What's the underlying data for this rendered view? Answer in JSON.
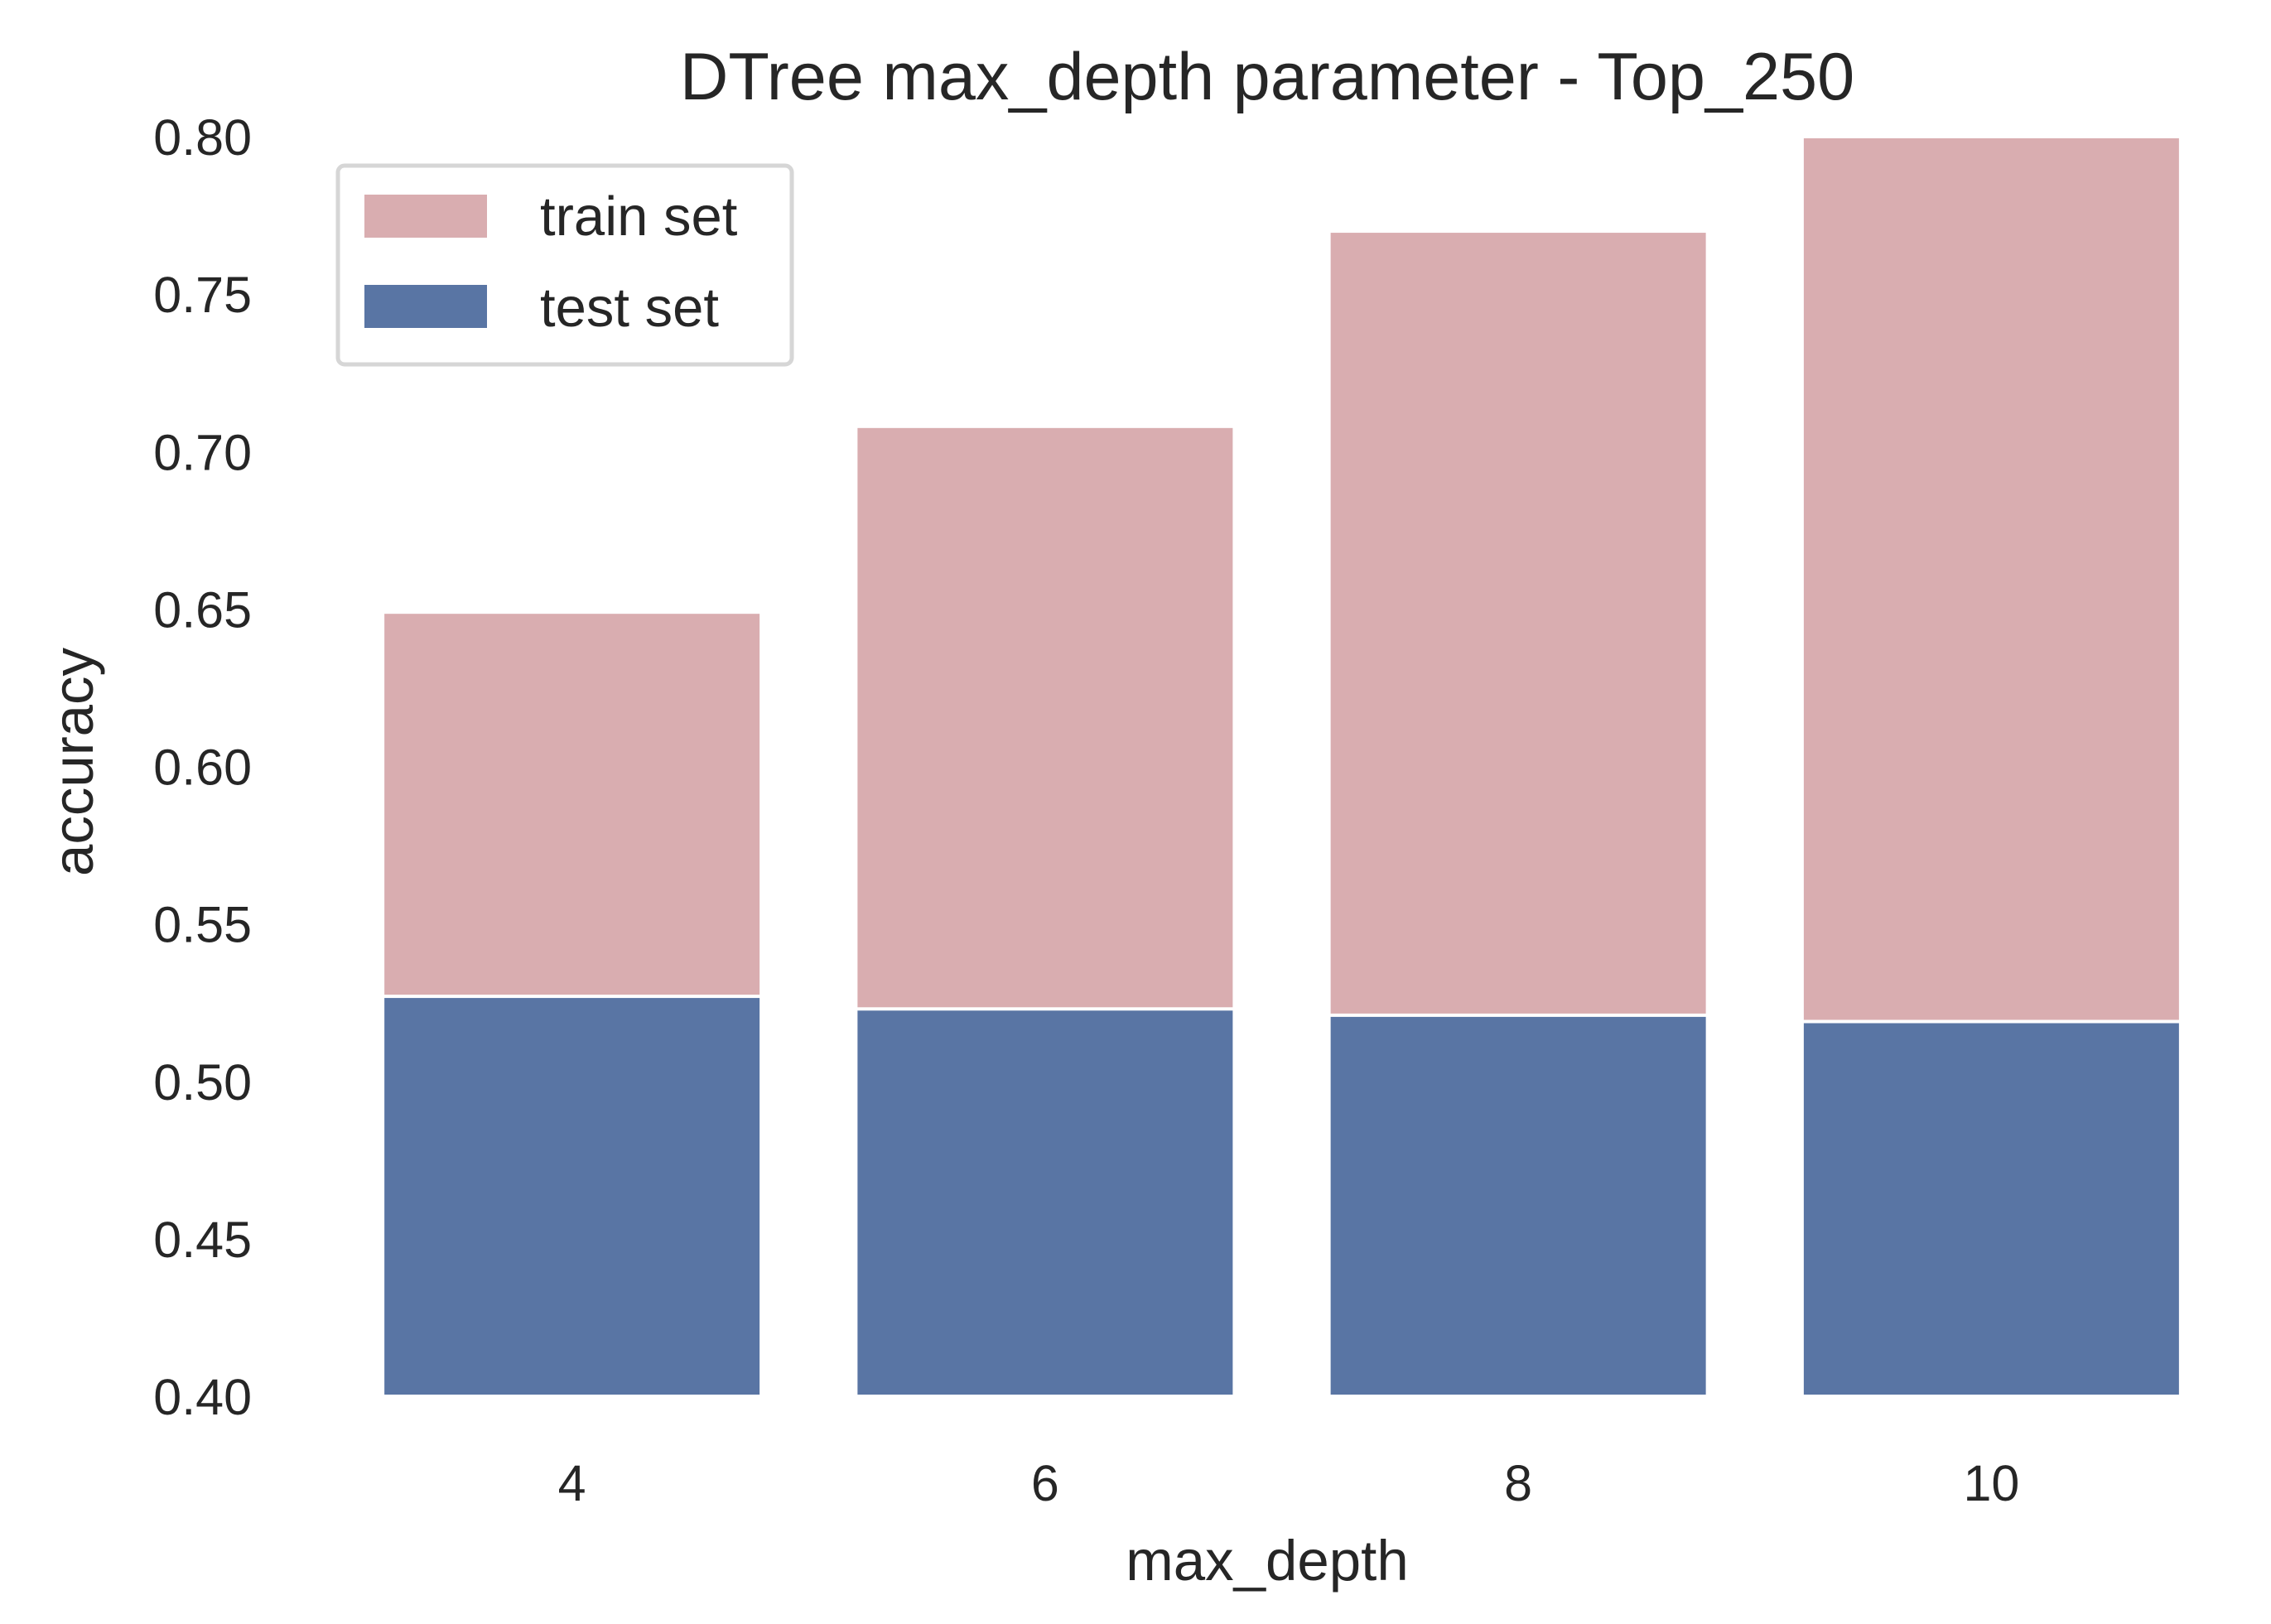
{
  "chart_data": {
    "type": "bar",
    "title": "DTree max_depth parameter - Top_250",
    "xlabel": "max_depth",
    "ylabel": "accuracy",
    "categories": [
      "4",
      "6",
      "8",
      "10"
    ],
    "ylim": [
      0.4,
      0.8
    ],
    "yticks": [
      "0.40",
      "0.45",
      "0.50",
      "0.55",
      "0.60",
      "0.65",
      "0.70",
      "0.75",
      "0.80"
    ],
    "grid": false,
    "legend_position": "top-left",
    "series": [
      {
        "name": "train set",
        "values": [
          0.649,
          0.708,
          0.77,
          0.805
        ],
        "color": "#d9adb0"
      },
      {
        "name": "test set",
        "values": [
          0.527,
          0.523,
          0.521,
          0.519
        ],
        "color": "#5975a4"
      }
    ]
  }
}
